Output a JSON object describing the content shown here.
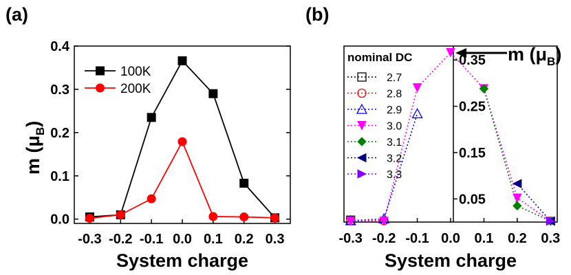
{
  "chart_data": [
    {
      "panel": "(a)",
      "type": "line",
      "x": [
        -0.3,
        -0.2,
        -0.1,
        0.0,
        0.1,
        0.2,
        0.3
      ],
      "xtick_labels": [
        "-0.3",
        "-0.2",
        "-0.1",
        "0.0",
        "0.1",
        "0.2",
        "0.3"
      ],
      "ytick_labels": [
        "0.0",
        "0.1",
        "0.2",
        "0.3",
        "0.4"
      ],
      "yticks": [
        0.0,
        0.1,
        0.2,
        0.3,
        0.4
      ],
      "xlim": [
        -0.35,
        0.35
      ],
      "ylim": [
        -0.01,
        0.4
      ],
      "xlabel": "System charge",
      "ylabel_main": "m (μ",
      "ylabel_sub": "B",
      "ylabel_close": ")",
      "legend_position": "top-left",
      "series": [
        {
          "name": "100K",
          "color": "#000000",
          "marker": "square",
          "values": [
            0.005,
            0.01,
            0.235,
            0.366,
            0.29,
            0.083,
            0.003
          ]
        },
        {
          "name": "200K",
          "color": "#ff0000",
          "marker": "circle",
          "values": [
            0.002,
            0.01,
            0.047,
            0.179,
            0.006,
            0.005,
            0.003
          ]
        }
      ]
    },
    {
      "panel": "(b)",
      "type": "line",
      "xtick_labels": [
        "-0.3",
        "-0.2",
        "-0.1",
        "0.0",
        "0.1",
        "0.2",
        "0.3"
      ],
      "xticks": [
        -0.3,
        -0.2,
        -0.1,
        0.0,
        0.1,
        0.2,
        0.3
      ],
      "ytick_labels": [
        "0.05",
        "0.15",
        "0.25",
        "0.35"
      ],
      "yticks": [
        0.05,
        0.15,
        0.25,
        0.35
      ],
      "xlim": [
        -0.32,
        0.32
      ],
      "ylim": [
        0.0,
        0.38
      ],
      "xlabel": "System charge",
      "axis_label_main": "m (μ",
      "axis_label_sub": "B",
      "axis_label_close": ")",
      "legend_title": "nominal DC",
      "legend_position": "top-left",
      "series": [
        {
          "name": "2.7",
          "color": "#000000",
          "marker": "open-square",
          "x": [
            -0.3
          ],
          "values": [
            0.004
          ]
        },
        {
          "name": "2.8",
          "color": "#ff0000",
          "marker": "open-circle",
          "x": [
            -0.3,
            -0.2
          ],
          "values": [
            0.003,
            0.003
          ]
        },
        {
          "name": "2.9",
          "color": "#0000ff",
          "marker": "open-triangle-up",
          "x": [
            -0.3,
            -0.2,
            -0.1
          ],
          "values": [
            0.003,
            0.007,
            0.234
          ]
        },
        {
          "name": "3.0",
          "color": "#ff00ff",
          "marker": "triangle-down",
          "x": [
            -0.3,
            -0.2,
            -0.1,
            0.0,
            0.1,
            0.2,
            0.3
          ],
          "values": [
            0.002,
            0.002,
            0.29,
            0.366,
            0.288,
            0.052,
            0.002
          ]
        },
        {
          "name": "3.1",
          "color": "#008000",
          "marker": "diamond",
          "x": [
            0.1,
            0.2,
            0.3
          ],
          "values": [
            0.288,
            0.035,
            0.002
          ]
        },
        {
          "name": "3.2",
          "color": "#000080",
          "marker": "triangle-left",
          "x": [
            0.2,
            0.3
          ],
          "values": [
            0.083,
            0.002
          ]
        },
        {
          "name": "3.3",
          "color": "#8000ff",
          "marker": "triangle-right",
          "x": [
            0.3
          ],
          "values": [
            0.002
          ]
        }
      ]
    }
  ]
}
